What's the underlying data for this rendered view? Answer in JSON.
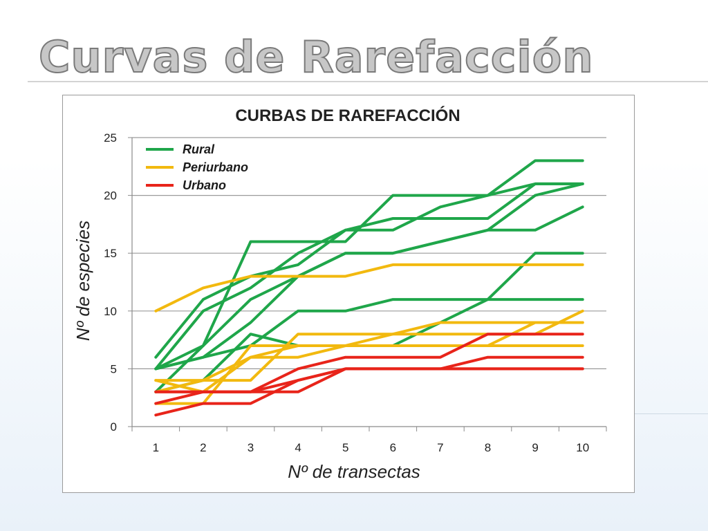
{
  "slide": {
    "title": "Curvas de Rarefacción"
  },
  "chart_data": {
    "type": "line",
    "title": "CURBAS DE RAREFACCIÓN",
    "xlabel": "Nº de transectas",
    "ylabel": "Nº de especies",
    "x": [
      1,
      2,
      3,
      4,
      5,
      6,
      7,
      8,
      9,
      10
    ],
    "xlim": [
      0.5,
      10.5
    ],
    "ylim": [
      0,
      25
    ],
    "yticks": [
      0,
      5,
      10,
      15,
      20,
      25
    ],
    "grid": "horizontal",
    "legend_position": "top-left",
    "groups": [
      {
        "name": "Rural",
        "color": "#1fa64a",
        "series": [
          {
            "values": [
              5,
              7,
              16,
              16,
              16,
              20,
              20,
              20,
              23,
              23
            ]
          },
          {
            "values": [
              6,
              11,
              13,
              14,
              17,
              17,
              19,
              20,
              21,
              21
            ]
          },
          {
            "values": [
              5,
              10,
              12,
              15,
              17,
              18,
              18,
              18,
              21,
              21
            ]
          },
          {
            "values": [
              5,
              6,
              9,
              13,
              15,
              15,
              16,
              17,
              20,
              21
            ]
          },
          {
            "values": [
              3,
              7,
              11,
              13,
              15,
              15,
              16,
              17,
              17,
              19
            ]
          },
          {
            "values": [
              5,
              6,
              7,
              10,
              10,
              11,
              11,
              11,
              11,
              11
            ]
          },
          {
            "values": [
              3,
              4,
              8,
              7,
              7,
              7,
              9,
              11,
              15,
              15
            ]
          }
        ]
      },
      {
        "name": "Periurbano",
        "color": "#f2b90f",
        "series": [
          {
            "values": [
              10,
              12,
              13,
              13,
              13,
              14,
              14,
              14,
              14,
              14
            ]
          },
          {
            "values": [
              4,
              4,
              4,
              8,
              8,
              8,
              9,
              9,
              9,
              9
            ]
          },
          {
            "values": [
              4,
              3,
              6,
              7,
              7,
              8,
              8,
              8,
              8,
              10
            ]
          },
          {
            "values": [
              3,
              4,
              6,
              6,
              7,
              7,
              7,
              7,
              7,
              7
            ]
          },
          {
            "values": [
              2,
              2,
              7,
              7,
              7,
              7,
              7,
              7,
              9,
              9
            ]
          }
        ]
      },
      {
        "name": "Urbano",
        "color": "#e8241a",
        "series": [
          {
            "values": [
              3,
              3,
              3,
              5,
              6,
              6,
              6,
              8,
              8,
              8
            ]
          },
          {
            "values": [
              3,
              3,
              3,
              3,
              5,
              5,
              5,
              5,
              5,
              5
            ]
          },
          {
            "values": [
              2,
              3,
              3,
              4,
              5,
              5,
              5,
              6,
              6,
              6
            ]
          },
          {
            "values": [
              1,
              2,
              2,
              4,
              5,
              5,
              5,
              5,
              5,
              5
            ]
          }
        ]
      }
    ]
  }
}
